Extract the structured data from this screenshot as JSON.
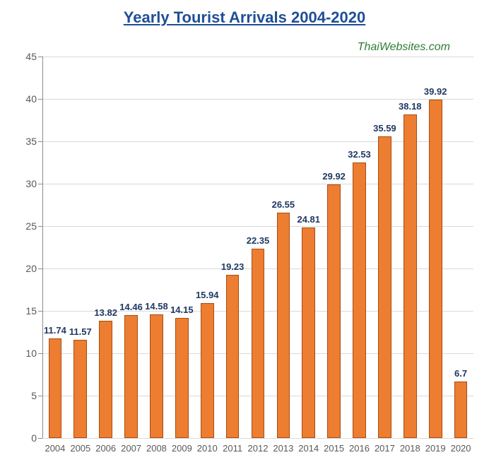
{
  "title": {
    "text": "Yearly Tourist Arrivals 2004-2020",
    "color": "#1f4e99",
    "fontsize": 22
  },
  "attribution": {
    "text": "ThaiWebsites.com",
    "color": "#2e7d32",
    "fontsize": 16
  },
  "chart": {
    "type": "bar",
    "background_color": "#ffffff",
    "grid_color": "#d9d9d9",
    "axis_line_color": "#8c8c8c",
    "ylim": [
      0,
      45
    ],
    "ytick_step": 5,
    "ytick_labels": [
      "0",
      "5",
      "10",
      "15",
      "20",
      "25",
      "30",
      "35",
      "40",
      "45"
    ],
    "ytick_color": "#595959",
    "ytick_fontsize": 14,
    "xtick_color": "#595959",
    "xtick_fontsize": 13,
    "bar_color": "#ed7d31",
    "bar_border_color": "#a94d10",
    "bar_width": 0.52,
    "value_label_color": "#1f3864",
    "value_label_fontsize": 13,
    "categories": [
      "2004",
      "2005",
      "2006",
      "2007",
      "2008",
      "2009",
      "2010",
      "2011",
      "2012",
      "2013",
      "2014",
      "2015",
      "2016",
      "2017",
      "2018",
      "2019",
      "2020"
    ],
    "values": [
      11.74,
      11.57,
      13.82,
      14.46,
      14.58,
      14.15,
      15.94,
      19.23,
      22.35,
      26.55,
      24.81,
      29.92,
      32.53,
      35.59,
      38.18,
      39.92,
      6.7
    ],
    "value_labels": [
      "11.74",
      "11.57",
      "13.82",
      "14.46",
      "14.58",
      "14.15",
      "15.94",
      "19.23",
      "22.35",
      "26.55",
      "24.81",
      "29.92",
      "32.53",
      "35.59",
      "38.18",
      "39.92",
      "6.7"
    ]
  }
}
